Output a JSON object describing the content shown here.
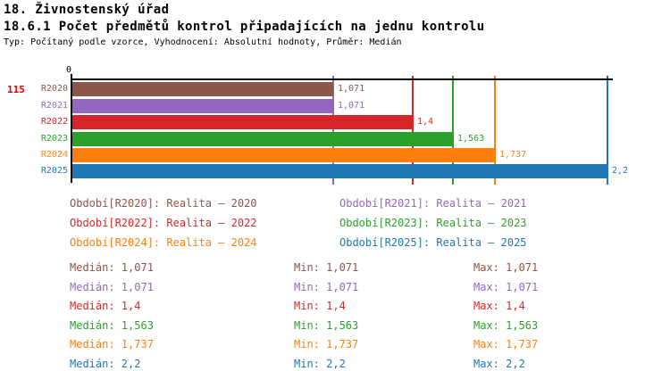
{
  "header": {
    "line1": "18. Živnostenský úřad",
    "line2": "18.6.1 Počet předmětů kontrol připadajících na jednu kontrolu",
    "meta": "Typ: Počítaný podle vzorce, Vyhodnocení: Absolutní hodnoty, Průměr: Medián"
  },
  "indicator_number": "115",
  "indicator_color": "#dd0000",
  "chart_data": {
    "type": "bar",
    "orientation": "horizontal",
    "title": "18.6.1 Počet předmětů kontrol připadajících na jednu kontrolu",
    "categories": [
      "R2020",
      "R2021",
      "R2022",
      "R2023",
      "R2024",
      "R2025"
    ],
    "values": [
      1.071,
      1.071,
      1.4,
      1.563,
      1.737,
      2.2
    ],
    "value_labels": [
      "1,071",
      "1,071",
      "1,4",
      "1,563",
      "1,737",
      "2,2"
    ],
    "series_colors": [
      "#8c564b",
      "#9467bd",
      "#d62728",
      "#2ca02c",
      "#ff7f0e",
      "#1f77b4"
    ],
    "x_axis": {
      "zero_label": "0",
      "min": 0,
      "max": 2.22,
      "grid": false
    },
    "value_marker_lines": true,
    "legend_position": "bottom"
  },
  "legend": {
    "items": [
      {
        "label": "Období[R2020]: Realita – 2020",
        "color": "#8c564b"
      },
      {
        "label": "Období[R2021]: Realita – 2021",
        "color": "#9467bd"
      },
      {
        "label": "Období[R2022]: Realita – 2022",
        "color": "#d62728"
      },
      {
        "label": "Období[R2023]: Realita – 2023",
        "color": "#2ca02c"
      },
      {
        "label": "Období[R2024]: Realita – 2024",
        "color": "#ff7f0e"
      },
      {
        "label": "Období[R2025]: Realita – 2025",
        "color": "#1f77b4"
      }
    ]
  },
  "stats": {
    "rows": [
      {
        "median": "Medián: 1,071",
        "min": "Min: 1,071",
        "max": "Max: 1,071",
        "color": "#8c564b"
      },
      {
        "median": "Medián: 1,071",
        "min": "Min: 1,071",
        "max": "Max: 1,071",
        "color": "#9467bd"
      },
      {
        "median": "Medián: 1,4",
        "min": "Min: 1,4",
        "max": "Max: 1,4",
        "color": "#d62728"
      },
      {
        "median": "Medián: 1,563",
        "min": "Min: 1,563",
        "max": "Max: 1,563",
        "color": "#2ca02c"
      },
      {
        "median": "Medián: 1,737",
        "min": "Min: 1,737",
        "max": "Max: 1,737",
        "color": "#ff7f0e"
      },
      {
        "median": "Medián: 2,2",
        "min": "Min: 2,2",
        "max": "Max: 2,2",
        "color": "#1f77b4"
      }
    ]
  }
}
